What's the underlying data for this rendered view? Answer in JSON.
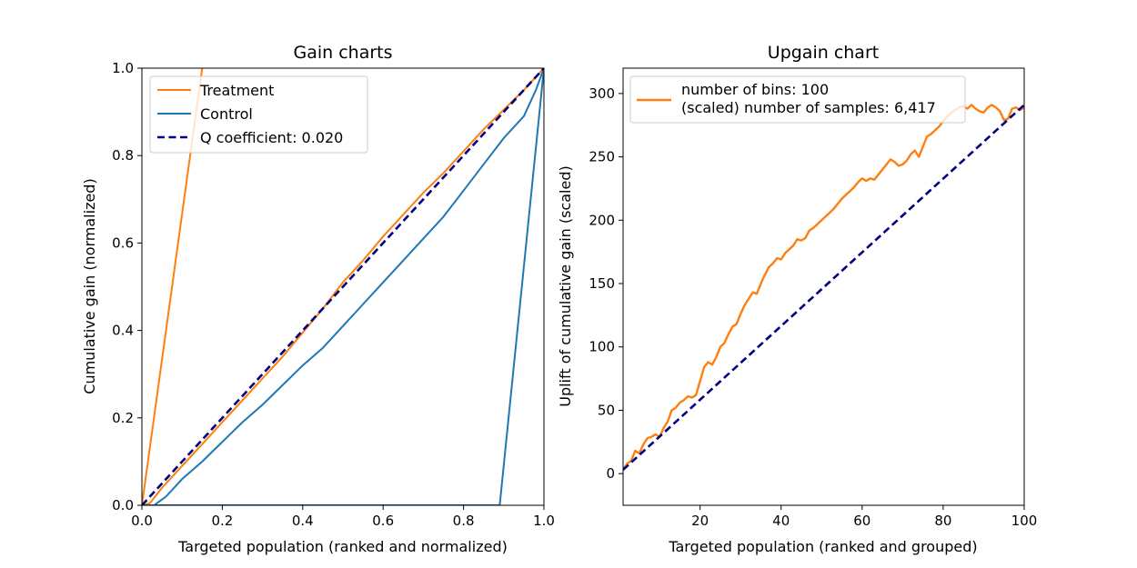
{
  "chart_data": [
    {
      "type": "line",
      "title": "Gain charts",
      "xlabel": "Targeted population (ranked and normalized)",
      "ylabel": "Cumulative gain (normalized)",
      "xlim": [
        0.0,
        1.0
      ],
      "ylim": [
        0.0,
        1.0
      ],
      "xticks": [
        "0.0",
        "0.2",
        "0.4",
        "0.6",
        "0.8",
        "1.0"
      ],
      "yticks": [
        "0.0",
        "0.2",
        "0.4",
        "0.6",
        "0.8",
        "1.0"
      ],
      "grid": false,
      "legend_position": "upper-left",
      "series": [
        {
          "name": "Treatment",
          "color": "#ff7f0e",
          "style": "solid",
          "points": [
            [
              0.0,
              0.0
            ],
            [
              0.15,
              1.0
            ]
          ]
        },
        {
          "name": "Treatment",
          "color": "#ff7f0e",
          "style": "solid",
          "show_in_legend": false,
          "points": [
            [
              0.0,
              0.0
            ],
            [
              0.02,
              0.005
            ],
            [
              0.05,
              0.04
            ],
            [
              0.1,
              0.09
            ],
            [
              0.15,
              0.14
            ],
            [
              0.2,
              0.19
            ],
            [
              0.25,
              0.24
            ],
            [
              0.3,
              0.29
            ],
            [
              0.35,
              0.34
            ],
            [
              0.4,
              0.395
            ],
            [
              0.45,
              0.45
            ],
            [
              0.5,
              0.51
            ],
            [
              0.55,
              0.56
            ],
            [
              0.6,
              0.615
            ],
            [
              0.65,
              0.665
            ],
            [
              0.7,
              0.715
            ],
            [
              0.75,
              0.76
            ],
            [
              0.8,
              0.81
            ],
            [
              0.85,
              0.86
            ],
            [
              0.9,
              0.905
            ],
            [
              0.95,
              0.95
            ],
            [
              1.0,
              1.0
            ]
          ]
        },
        {
          "name": "Control",
          "color": "#1f77b4",
          "style": "solid",
          "points": [
            [
              0.0,
              0.0
            ],
            [
              0.03,
              0.0
            ],
            [
              0.06,
              0.02
            ],
            [
              0.1,
              0.06
            ],
            [
              0.15,
              0.1
            ],
            [
              0.2,
              0.145
            ],
            [
              0.25,
              0.19
            ],
            [
              0.3,
              0.23
            ],
            [
              0.35,
              0.275
            ],
            [
              0.4,
              0.32
            ],
            [
              0.45,
              0.36
            ],
            [
              0.5,
              0.41
            ],
            [
              0.55,
              0.46
            ],
            [
              0.6,
              0.51
            ],
            [
              0.65,
              0.56
            ],
            [
              0.7,
              0.61
            ],
            [
              0.75,
              0.66
            ],
            [
              0.8,
              0.72
            ],
            [
              0.85,
              0.78
            ],
            [
              0.9,
              0.84
            ],
            [
              0.95,
              0.89
            ],
            [
              0.98,
              0.95
            ],
            [
              1.0,
              1.0
            ]
          ]
        },
        {
          "name": "Control",
          "color": "#1f77b4",
          "style": "solid",
          "show_in_legend": false,
          "points": [
            [
              0.0,
              0.0
            ],
            [
              0.89,
              0.0
            ],
            [
              1.0,
              1.0
            ]
          ]
        },
        {
          "name": "Q coefficient:  0.020",
          "color": "#000080",
          "style": "dashed",
          "points": [
            [
              0.0,
              0.0
            ],
            [
              1.0,
              1.0
            ]
          ]
        }
      ]
    },
    {
      "type": "line",
      "title": "Upgain chart",
      "xlabel": "Targeted population (ranked and grouped)",
      "ylabel": "Uplift of cumulative gain (scaled)",
      "xlim": [
        1,
        100
      ],
      "ylim": [
        -25,
        320
      ],
      "xticks": [
        "20",
        "40",
        "60",
        "80",
        "100"
      ],
      "yticks": [
        "0",
        "50",
        "100",
        "150",
        "200",
        "250",
        "300"
      ],
      "grid": false,
      "legend_position": "upper-left",
      "legend_lines": [
        "number of bins: 100",
        "(scaled) number of samples: 6,417"
      ],
      "series": [
        {
          "name": "number of bins: 100\n(scaled) number of samples: 6,417",
          "color": "#ff7f0e",
          "style": "solid",
          "points": [
            [
              1,
              3
            ],
            [
              2,
              8
            ],
            [
              3,
              10
            ],
            [
              4,
              18
            ],
            [
              5,
              16
            ],
            [
              6,
              23
            ],
            [
              7,
              28
            ],
            [
              8,
              29
            ],
            [
              9,
              31
            ],
            [
              10,
              29
            ],
            [
              11,
              36
            ],
            [
              12,
              41
            ],
            [
              13,
              50
            ],
            [
              14,
              52
            ],
            [
              15,
              56
            ],
            [
              16,
              58
            ],
            [
              17,
              61
            ],
            [
              18,
              60
            ],
            [
              19,
              62
            ],
            [
              20,
              73
            ],
            [
              21,
              84
            ],
            [
              22,
              88
            ],
            [
              23,
              86
            ],
            [
              24,
              92
            ],
            [
              25,
              100
            ],
            [
              26,
              103
            ],
            [
              27,
              110
            ],
            [
              28,
              116
            ],
            [
              29,
              118
            ],
            [
              30,
              126
            ],
            [
              31,
              133
            ],
            [
              32,
              138
            ],
            [
              33,
              143
            ],
            [
              34,
              142
            ],
            [
              35,
              150
            ],
            [
              36,
              157
            ],
            [
              37,
              163
            ],
            [
              38,
              166
            ],
            [
              39,
              170
            ],
            [
              40,
              169
            ],
            [
              41,
              174
            ],
            [
              42,
              177
            ],
            [
              43,
              180
            ],
            [
              44,
              185
            ],
            [
              45,
              184
            ],
            [
              46,
              186
            ],
            [
              47,
              192
            ],
            [
              48,
              194
            ],
            [
              49,
              197
            ],
            [
              50,
              200
            ],
            [
              51,
              203
            ],
            [
              52,
              206
            ],
            [
              53,
              209
            ],
            [
              54,
              213
            ],
            [
              55,
              217
            ],
            [
              56,
              220
            ],
            [
              57,
              223
            ],
            [
              58,
              226
            ],
            [
              59,
              230
            ],
            [
              60,
              233
            ],
            [
              61,
              231
            ],
            [
              62,
              233
            ],
            [
              63,
              232
            ],
            [
              64,
              236
            ],
            [
              65,
              240
            ],
            [
              66,
              244
            ],
            [
              67,
              248
            ],
            [
              68,
              246
            ],
            [
              69,
              243
            ],
            [
              70,
              244
            ],
            [
              71,
              247
            ],
            [
              72,
              252
            ],
            [
              73,
              255
            ],
            [
              74,
              250
            ],
            [
              75,
              258
            ],
            [
              76,
              266
            ],
            [
              77,
              268
            ],
            [
              78,
              271
            ],
            [
              79,
              274
            ],
            [
              80,
              278
            ],
            [
              81,
              282
            ],
            [
              82,
              285
            ],
            [
              83,
              287
            ],
            [
              84,
              289
            ],
            [
              85,
              290
            ],
            [
              86,
              288
            ],
            [
              87,
              291
            ],
            [
              88,
              288
            ],
            [
              89,
              286
            ],
            [
              90,
              285
            ],
            [
              91,
              289
            ],
            [
              92,
              291
            ],
            [
              93,
              289
            ],
            [
              94,
              286
            ],
            [
              95,
              279
            ],
            [
              96,
              280
            ],
            [
              97,
              288
            ],
            [
              98,
              289
            ],
            [
              99,
              287
            ],
            [
              100,
              289
            ]
          ]
        },
        {
          "name": "",
          "color": "#000080",
          "style": "dashed",
          "show_in_legend": false,
          "points": [
            [
              1,
              3
            ],
            [
              100,
              291
            ]
          ]
        }
      ]
    }
  ]
}
